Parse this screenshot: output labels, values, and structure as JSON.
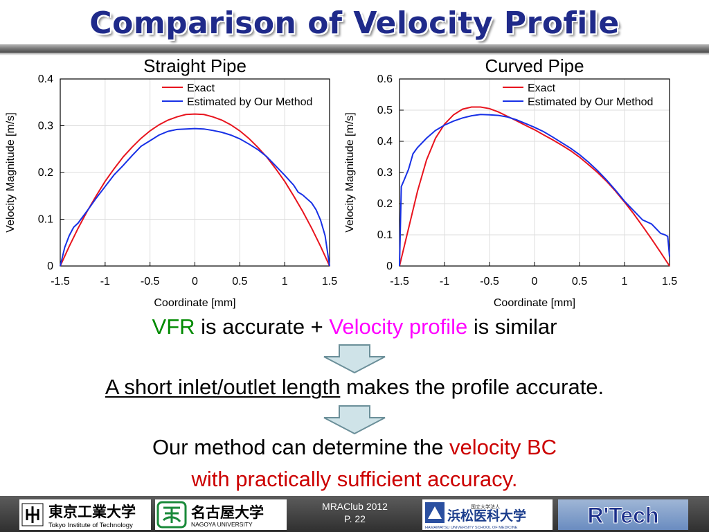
{
  "slide": {
    "title": "Comparison of Velocity Profile"
  },
  "chart_data": [
    {
      "type": "line",
      "title": "Straight Pipe",
      "xlabel": "Coordinate [mm]",
      "ylabel": "Velocity Magnitude [m/s]",
      "xlim": [
        -1.5,
        1.5
      ],
      "ylim": [
        0,
        0.4
      ],
      "xticks": [
        "-1.5",
        "-1",
        "-0.5",
        "0",
        "0.5",
        "1",
        "1.5"
      ],
      "yticks": [
        "0",
        "0.1",
        "0.2",
        "0.3",
        "0.4"
      ],
      "grid": true,
      "legend_position": "top-right",
      "series": [
        {
          "name": "Exact",
          "color": "#e8141e",
          "x": [
            -1.5,
            -1.4,
            -1.3,
            -1.2,
            -1.1,
            -1.0,
            -0.9,
            -0.8,
            -0.7,
            -0.6,
            -0.5,
            -0.4,
            -0.3,
            -0.2,
            -0.1,
            0.0,
            0.1,
            0.2,
            0.3,
            0.4,
            0.5,
            0.6,
            0.7,
            0.8,
            0.9,
            1.0,
            1.1,
            1.2,
            1.3,
            1.4,
            1.5
          ],
          "y": [
            0.0,
            0.042,
            0.081,
            0.117,
            0.15,
            0.181,
            0.208,
            0.233,
            0.254,
            0.273,
            0.289,
            0.302,
            0.312,
            0.319,
            0.324,
            0.325,
            0.324,
            0.319,
            0.312,
            0.302,
            0.289,
            0.273,
            0.254,
            0.233,
            0.208,
            0.181,
            0.15,
            0.117,
            0.081,
            0.042,
            0.0
          ]
        },
        {
          "name": "Estimated by Our Method",
          "color": "#1730e6",
          "x": [
            -1.5,
            -1.45,
            -1.4,
            -1.35,
            -1.3,
            -1.2,
            -1.1,
            -1.0,
            -0.9,
            -0.8,
            -0.7,
            -0.6,
            -0.5,
            -0.4,
            -0.3,
            -0.2,
            -0.1,
            0.0,
            0.1,
            0.2,
            0.3,
            0.4,
            0.5,
            0.6,
            0.7,
            0.8,
            0.9,
            1.0,
            1.1,
            1.15,
            1.2,
            1.3,
            1.35,
            1.4,
            1.45,
            1.5
          ],
          "y": [
            0.0,
            0.04,
            0.065,
            0.083,
            0.092,
            0.118,
            0.145,
            0.17,
            0.195,
            0.215,
            0.236,
            0.256,
            0.268,
            0.28,
            0.288,
            0.292,
            0.293,
            0.294,
            0.293,
            0.29,
            0.286,
            0.28,
            0.272,
            0.261,
            0.249,
            0.234,
            0.214,
            0.194,
            0.173,
            0.158,
            0.152,
            0.135,
            0.12,
            0.098,
            0.065,
            0.0
          ]
        }
      ]
    },
    {
      "type": "line",
      "title": "Curved Pipe",
      "xlabel": "Coordinate [mm]",
      "ylabel": "Velocity Magnitude [m/s]",
      "xlim": [
        -1.5,
        1.5
      ],
      "ylim": [
        0,
        0.6
      ],
      "xticks": [
        "-1.5",
        "-1",
        "-0.5",
        "0",
        "0.5",
        "1",
        "1.5"
      ],
      "yticks": [
        "0",
        "0.1",
        "0.2",
        "0.3",
        "0.4",
        "0.5",
        "0.6"
      ],
      "grid": true,
      "legend_position": "top-right",
      "series": [
        {
          "name": "Exact",
          "color": "#e8141e",
          "x": [
            -1.5,
            -1.4,
            -1.3,
            -1.2,
            -1.1,
            -1.0,
            -0.9,
            -0.8,
            -0.7,
            -0.6,
            -0.5,
            -0.4,
            -0.3,
            -0.2,
            -0.1,
            0.0,
            0.1,
            0.2,
            0.3,
            0.4,
            0.5,
            0.6,
            0.7,
            0.8,
            0.9,
            1.0,
            1.1,
            1.2,
            1.3,
            1.4,
            1.5
          ],
          "y": [
            0.0,
            0.12,
            0.24,
            0.34,
            0.41,
            0.455,
            0.485,
            0.503,
            0.51,
            0.51,
            0.505,
            0.494,
            0.48,
            0.466,
            0.451,
            0.437,
            0.421,
            0.405,
            0.388,
            0.37,
            0.349,
            0.325,
            0.3,
            0.272,
            0.24,
            0.205,
            0.168,
            0.128,
            0.087,
            0.044,
            0.0
          ]
        },
        {
          "name": "Estimated by Our Method",
          "color": "#1730e6",
          "x": [
            -1.5,
            -1.48,
            -1.45,
            -1.4,
            -1.35,
            -1.3,
            -1.2,
            -1.1,
            -1.0,
            -0.9,
            -0.8,
            -0.7,
            -0.6,
            -0.5,
            -0.4,
            -0.3,
            -0.2,
            -0.1,
            0.0,
            0.1,
            0.2,
            0.3,
            0.4,
            0.5,
            0.6,
            0.7,
            0.8,
            0.9,
            1.0,
            1.1,
            1.2,
            1.3,
            1.35,
            1.4,
            1.45,
            1.48,
            1.5
          ],
          "y": [
            0.0,
            0.255,
            0.275,
            0.31,
            0.36,
            0.38,
            0.41,
            0.435,
            0.452,
            0.465,
            0.475,
            0.482,
            0.486,
            0.485,
            0.483,
            0.478,
            0.469,
            0.457,
            0.445,
            0.431,
            0.414,
            0.396,
            0.378,
            0.357,
            0.333,
            0.306,
            0.276,
            0.243,
            0.208,
            0.178,
            0.148,
            0.135,
            0.12,
            0.105,
            0.1,
            0.095,
            0.03
          ]
        }
      ]
    }
  ],
  "statements": {
    "line1_a": "VFR",
    "line1_b": " is accurate + ",
    "line1_c": "Velocity profile",
    "line1_d": " is similar",
    "line2_a": "A short inlet/outlet length",
    "line2_b": " makes the profile accurate.",
    "line3_a": "Our method can determine the ",
    "line3_b": "velocity BC",
    "line4": "with practically sufficient accuracy."
  },
  "footer": {
    "event": "MRAClub 2012",
    "page": "P. 22",
    "logos": {
      "tokyo_tech": {
        "icon": "tokyo-tech-emblem-icon",
        "name_jp": "東京工業大学",
        "name_en": "Tokyo Institute of Technology"
      },
      "nagoya": {
        "icon": "nagoya-emblem-icon",
        "name_jp": "名古屋大学",
        "name_en": "NAGOYA UNIVERSITY"
      },
      "hamamatsu": {
        "icon": "hamamatsu-emblem-icon",
        "top_jp": "国立大学法人",
        "name_jp": "浜松医科大学",
        "name_en": "HAMAMATSU UNIVERSITY SCHOOL OF MEDICINE"
      },
      "rtech": {
        "name": "R'Tech"
      }
    }
  },
  "colors": {
    "title": "#1f2a8a",
    "exact": "#e8141e",
    "estimated": "#1730e6",
    "arrow_fill": "#cfe3e8",
    "arrow_stroke": "#6b8f99"
  }
}
